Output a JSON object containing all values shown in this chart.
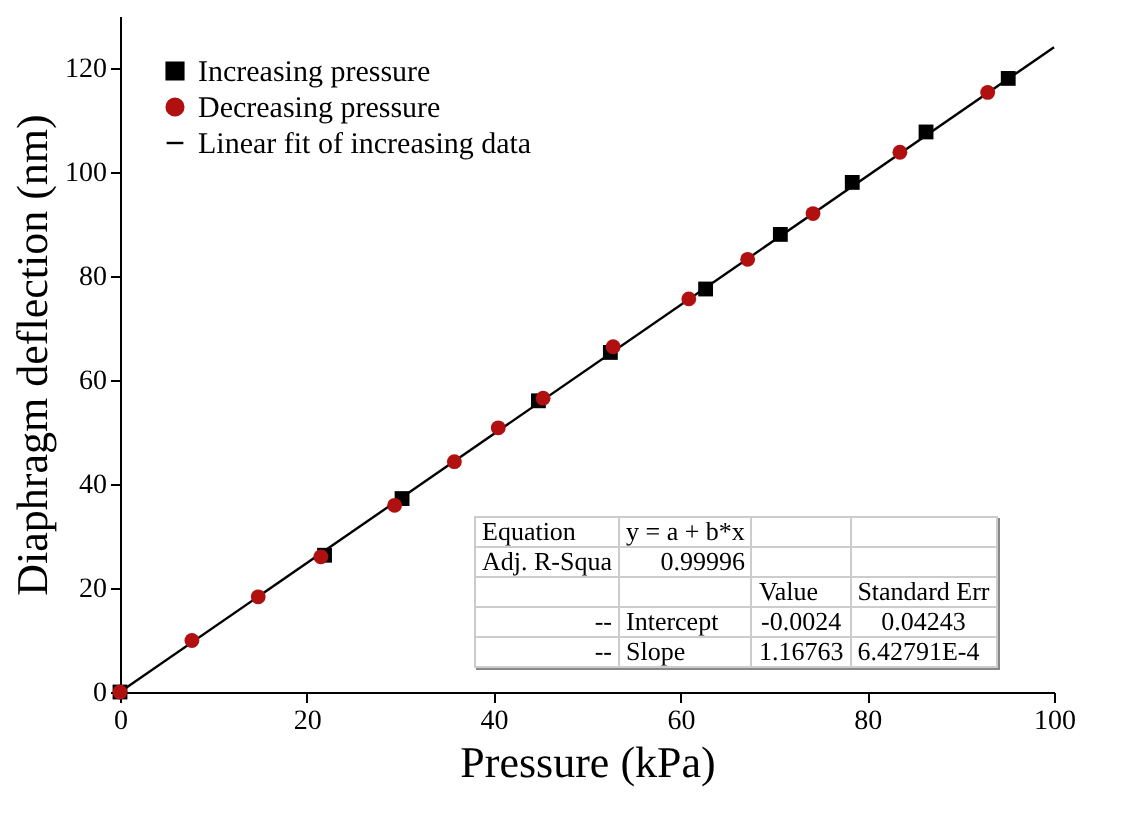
{
  "chart_data": {
    "type": "scatter",
    "xlabel": "Pressure (kPa)",
    "ylabel": "Diaphragm deflection (nm)",
    "xlim": [
      0,
      100
    ],
    "xticks": [
      0,
      20,
      40,
      60,
      80,
      100
    ],
    "ylim": [
      0,
      130
    ],
    "yticks": [
      0,
      20,
      40,
      60,
      80,
      100,
      120
    ],
    "legend": "top left",
    "grid": false,
    "series": [
      {
        "name": "Increasing pressure",
        "color": "#000000",
        "marker": "square",
        "x": [
          0,
          21.9,
          30.2,
          44.8,
          52.5,
          62.7,
          70.7,
          78.4,
          86.3,
          95.1
        ],
        "values": [
          0,
          26.3,
          37.2,
          56,
          65.3,
          77.5,
          88,
          98,
          107.7,
          118
        ]
      },
      {
        "name": "Decreasing pressure",
        "color": "#b01010",
        "marker": "circle",
        "x": [
          0,
          7.7,
          14.8,
          21.5,
          29.4,
          35.8,
          40.5,
          45.3,
          52.8,
          60.9,
          67.2,
          74.2,
          83.5,
          92.9
        ],
        "values": [
          0,
          9.9,
          18.3,
          26,
          35.9,
          44.3,
          50.8,
          56.5,
          66.4,
          75.6,
          83.2,
          92,
          103.8,
          115.3
        ]
      },
      {
        "name": "Linear fit of increasing data",
        "type": "line",
        "color": "#000000",
        "marker": "none",
        "line_style": "solid",
        "x": [
          0,
          100
        ],
        "values": [
          0,
          124
        ]
      }
    ],
    "annotations": [
      "Equation",
      "y = a + b*x",
      "Adj. R-Squa",
      "0.99996",
      "Value",
      "Standard Err",
      "--",
      "Intercept",
      "-0.0024",
      "0.04243",
      "--",
      "Slope",
      "1.16763",
      "6.42791E-4"
    ]
  }
}
